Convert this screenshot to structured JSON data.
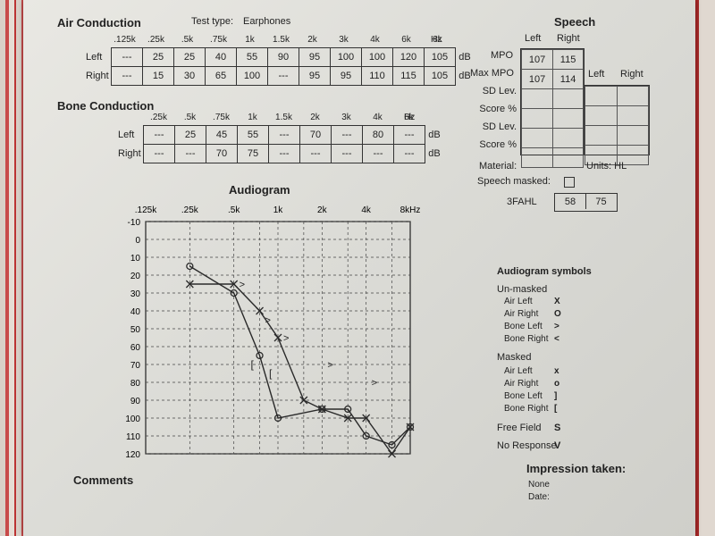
{
  "air": {
    "title": "Air Conduction",
    "test_type_label": "Test type:",
    "test_type_value": "Earphones",
    "freqs": [
      ".125k",
      ".25k",
      ".5k",
      ".75k",
      "1k",
      "1.5k",
      "2k",
      "3k",
      "4k",
      "6k",
      "8k"
    ],
    "hz": "Hz",
    "rows": [
      {
        "label": "Left",
        "values": [
          "---",
          "25",
          "25",
          "40",
          "55",
          "90",
          "95",
          "100",
          "100",
          "120",
          "105"
        ],
        "unit": "dB"
      },
      {
        "label": "Right",
        "values": [
          "---",
          "15",
          "30",
          "65",
          "100",
          "---",
          "95",
          "95",
          "110",
          "115",
          "105"
        ],
        "unit": "dB"
      }
    ]
  },
  "bone": {
    "title": "Bone Conduction",
    "freqs": [
      ".25k",
      ".5k",
      ".75k",
      "1k",
      "1.5k",
      "2k",
      "3k",
      "4k",
      "6k"
    ],
    "hz": "Hz",
    "rows": [
      {
        "label": "Left",
        "values": [
          "---",
          "25",
          "45",
          "55",
          "---",
          "70",
          "---",
          "80",
          "---"
        ],
        "unit": "dB"
      },
      {
        "label": "Right",
        "values": [
          "---",
          "---",
          "70",
          "75",
          "---",
          "---",
          "---",
          "---",
          "---"
        ],
        "unit": "dB"
      }
    ]
  },
  "speech": {
    "title": "Speech",
    "col_left": "Left",
    "col_right": "Right",
    "rows": [
      {
        "label": "MPO",
        "left": "107",
        "right": "115"
      },
      {
        "label": "Max MPO",
        "left": "107",
        "right": "114"
      },
      {
        "label": "SD Lev.",
        "left": "",
        "right": ""
      },
      {
        "label": "Score %",
        "left": "",
        "right": ""
      },
      {
        "label": "SD Lev.",
        "left": "",
        "right": ""
      },
      {
        "label": "Score %",
        "left": "",
        "right": ""
      }
    ],
    "side_left": "Left",
    "side_right": "Right",
    "material_label": "Material:",
    "units_label": "Units: HL",
    "masked_label": "Speech masked:",
    "fahl_label": "3FAHL",
    "fahl_left": "58",
    "fahl_right": "75"
  },
  "audiogram": {
    "title": "Audiogram",
    "x_labels": [
      ".125k",
      ".25k",
      ".5k",
      "1k",
      "2k",
      "4k",
      "8kHz"
    ],
    "y_labels": [
      "-10",
      "0",
      "10",
      "20",
      "30",
      "40",
      "50",
      "60",
      "70",
      "80",
      "90",
      "100",
      "110",
      "120"
    ]
  },
  "chart_data": {
    "type": "line",
    "title": "Audiogram",
    "x_scale": "log",
    "x_ticks": [
      ".125k",
      ".25k",
      ".5k",
      "1k",
      "2k",
      "4k",
      "8kHz"
    ],
    "ylim": [
      -10,
      120
    ],
    "y_inverted": true,
    "series": [
      {
        "marker": "O",
        "x_hz": [
          250,
          500,
          750,
          1000,
          2000,
          3000,
          4000,
          6000,
          8000
        ],
        "y_db": [
          15,
          30,
          65,
          100,
          95,
          95,
          110,
          115,
          105
        ]
      },
      {
        "marker": "X",
        "x_hz": [
          250,
          500,
          750,
          1000,
          1500,
          2000,
          3000,
          4000,
          6000,
          8000
        ],
        "y_db": [
          25,
          25,
          40,
          55,
          90,
          95,
          100,
          100,
          120,
          105
        ]
      }
    ],
    "bone_left": {
      "marker": ">",
      "x_hz": [
        500,
        750,
        1000,
        2000,
        4000
      ],
      "y_db": [
        25,
        45,
        55,
        70,
        80
      ]
    },
    "bone_right": {
      "marker": "[",
      "x_hz": [
        750,
        1000
      ],
      "y_db": [
        70,
        75
      ]
    }
  },
  "symbols": {
    "title": "Audiogram symbols",
    "unmasked_label": "Un-masked",
    "unmasked": [
      {
        "name": "Air Left",
        "sym": "X"
      },
      {
        "name": "Air Right",
        "sym": "O"
      },
      {
        "name": "Bone Left",
        "sym": ">"
      },
      {
        "name": "Bone Right",
        "sym": "<"
      }
    ],
    "masked_label": "Masked",
    "masked": [
      {
        "name": "Air Left",
        "sym": "x"
      },
      {
        "name": "Air Right",
        "sym": "o"
      },
      {
        "name": "Bone Left",
        "sym": "]"
      },
      {
        "name": "Bone Right",
        "sym": "["
      }
    ],
    "free_field": {
      "name": "Free Field",
      "sym": "S"
    },
    "no_response": {
      "name": "No Response",
      "sym": "V"
    }
  },
  "comments_label": "Comments",
  "impression": {
    "title": "Impression taken:",
    "none_label": "None",
    "date_label": "Date:"
  }
}
